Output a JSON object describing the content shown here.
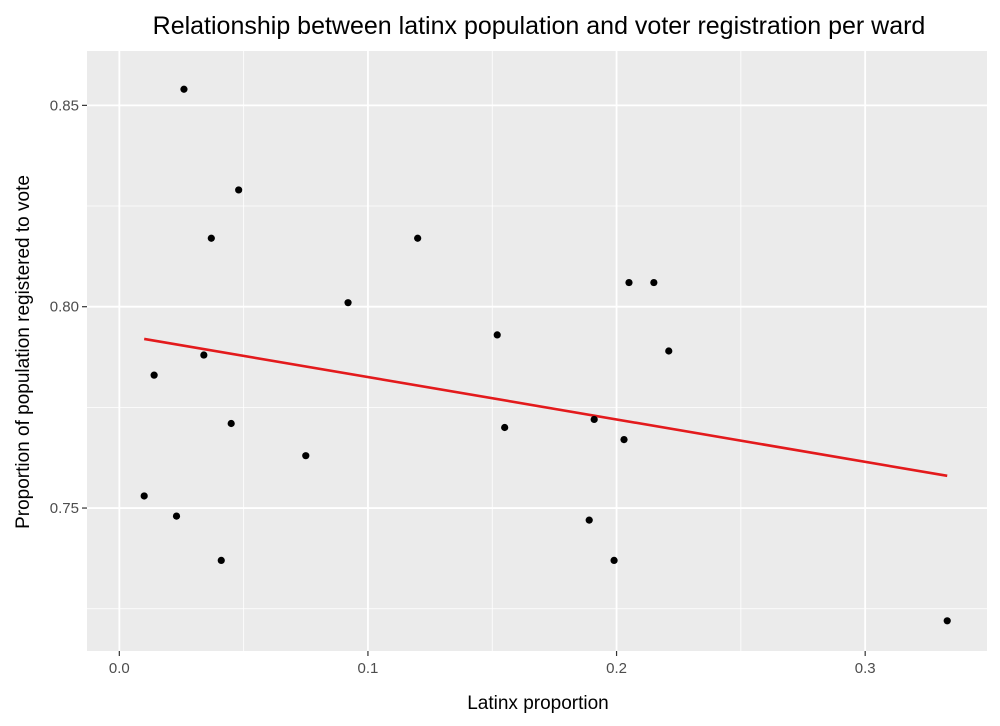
{
  "chart_data": {
    "type": "scatter",
    "title": "Relationship between latinx population and voter registration per ward",
    "xlabel": "Latinx proportion",
    "ylabel": "Proportion of population registered to vote",
    "xlim": [
      -0.013,
      0.349
    ],
    "ylim": [
      0.7145,
      0.8635
    ],
    "x_ticks": [
      0.0,
      0.1,
      0.2,
      0.3
    ],
    "x_tick_labels": [
      "0.0",
      "0.1",
      "0.2",
      "0.3"
    ],
    "y_ticks": [
      0.75,
      0.8,
      0.85
    ],
    "y_tick_labels": [
      "0.75",
      "0.80",
      "0.85"
    ],
    "grid": true,
    "colors": {
      "panel_background": "#ebebeb",
      "grid": "#ffffff",
      "points": "#000000",
      "trend_line": "#e31a1c"
    },
    "points": [
      {
        "x": 0.026,
        "y": 0.854
      },
      {
        "x": 0.048,
        "y": 0.829
      },
      {
        "x": 0.037,
        "y": 0.817
      },
      {
        "x": 0.12,
        "y": 0.817
      },
      {
        "x": 0.205,
        "y": 0.806
      },
      {
        "x": 0.215,
        "y": 0.806
      },
      {
        "x": 0.092,
        "y": 0.801
      },
      {
        "x": 0.152,
        "y": 0.793
      },
      {
        "x": 0.221,
        "y": 0.789
      },
      {
        "x": 0.034,
        "y": 0.788
      },
      {
        "x": 0.014,
        "y": 0.783
      },
      {
        "x": 0.191,
        "y": 0.772
      },
      {
        "x": 0.045,
        "y": 0.771
      },
      {
        "x": 0.155,
        "y": 0.77
      },
      {
        "x": 0.203,
        "y": 0.767
      },
      {
        "x": 0.075,
        "y": 0.763
      },
      {
        "x": 0.01,
        "y": 0.753
      },
      {
        "x": 0.023,
        "y": 0.748
      },
      {
        "x": 0.189,
        "y": 0.747
      },
      {
        "x": 0.041,
        "y": 0.737
      },
      {
        "x": 0.199,
        "y": 0.737
      },
      {
        "x": 0.333,
        "y": 0.722
      }
    ],
    "trend_line": {
      "x": [
        0.01,
        0.333
      ],
      "y": [
        0.792,
        0.758
      ]
    }
  }
}
